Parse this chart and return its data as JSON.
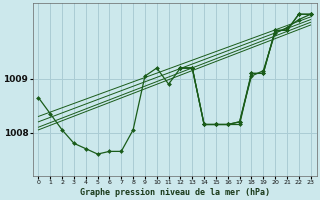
{
  "title": "Graphe pression niveau de la mer (hPa)",
  "background_color": "#cce8ec",
  "grid_color": "#aaccd4",
  "line_color": "#1a5c1a",
  "marker_color": "#1a5c1a",
  "xlim": [
    -0.5,
    23.5
  ],
  "ylim": [
    1007.2,
    1010.4
  ],
  "yticks": [
    1008,
    1009
  ],
  "xticks": [
    0,
    1,
    2,
    3,
    4,
    5,
    6,
    7,
    8,
    9,
    10,
    11,
    12,
    13,
    14,
    15,
    16,
    17,
    18,
    19,
    20,
    21,
    22,
    23
  ],
  "series_main": [
    1008.65,
    1008.35,
    1008.05,
    1007.8,
    1007.7,
    1007.6,
    1007.65,
    1007.65,
    1008.05,
    1009.05,
    1009.2,
    1008.9,
    1009.2,
    1009.2,
    1008.15,
    1008.15,
    1008.15,
    1008.2,
    1009.1,
    1009.1,
    1009.9,
    1009.9,
    1010.2,
    1010.2
  ],
  "trend_lines": [
    {
      "x0": 0,
      "y0": 1008.3,
      "x1": 23,
      "y1": 1010.15
    },
    {
      "x0": 0,
      "y0": 1008.2,
      "x1": 23,
      "y1": 1010.1
    },
    {
      "x0": 0,
      "y0": 1008.1,
      "x1": 23,
      "y1": 1010.05
    },
    {
      "x0": 0,
      "y0": 1008.05,
      "x1": 23,
      "y1": 1010.0
    }
  ],
  "extra_lines": [
    {
      "points": [
        [
          12,
          1009.2
        ],
        [
          13,
          1009.2
        ],
        [
          14,
          1008.15
        ],
        [
          15,
          1008.15
        ],
        [
          16,
          1008.15
        ],
        [
          17,
          1008.15
        ],
        [
          18,
          1009.1
        ],
        [
          19,
          1009.1
        ],
        [
          20,
          1009.9
        ],
        [
          21,
          1009.9
        ],
        [
          22,
          1010.2
        ],
        [
          23,
          1010.2
        ]
      ]
    },
    {
      "points": [
        [
          12,
          1009.2
        ],
        [
          13,
          1009.2
        ],
        [
          14,
          1008.15
        ],
        [
          15,
          1008.15
        ],
        [
          16,
          1008.15
        ],
        [
          17,
          1008.2
        ],
        [
          18,
          1009.05
        ],
        [
          19,
          1009.15
        ],
        [
          20,
          1009.85
        ],
        [
          21,
          1009.95
        ],
        [
          22,
          1010.1
        ],
        [
          23,
          1010.2
        ]
      ]
    }
  ]
}
